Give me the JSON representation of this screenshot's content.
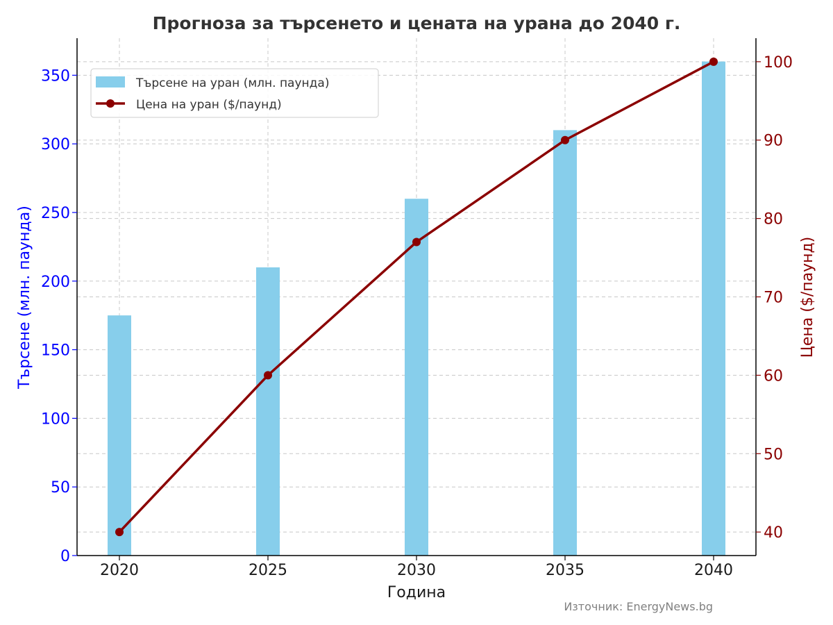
{
  "chart_data": {
    "type": "bar",
    "title": "Прогноза за търсенето и цената на урана до 2040 г.",
    "xlabel": "Година",
    "ylabel_left": "Търсене (млн. паунда)",
    "ylabel_right": "Цена ($/паунд)",
    "categories": [
      "2020",
      "2025",
      "2030",
      "2035",
      "2040"
    ],
    "series": [
      {
        "name": "Търсене на уран (млн. паунда)",
        "type": "bar",
        "axis": "left",
        "color": "#87ceeb",
        "values": [
          175,
          210,
          260,
          310,
          360
        ]
      },
      {
        "name": "Цена на уран ($/паунд)",
        "type": "line",
        "axis": "right",
        "color": "#8b0000",
        "values": [
          40,
          60,
          77,
          90,
          100
        ]
      }
    ],
    "ylim_left": [
      0,
      377
    ],
    "ylim_right": [
      37,
      103
    ],
    "yticks_left": [
      "0",
      "50",
      "100",
      "150",
      "200",
      "250",
      "300",
      "350"
    ],
    "yticks_right": [
      "40",
      "50",
      "60",
      "70",
      "80",
      "90",
      "100"
    ],
    "grid": true,
    "legend_position": "top-left",
    "source": "Източник: EnergyNews.bg"
  }
}
